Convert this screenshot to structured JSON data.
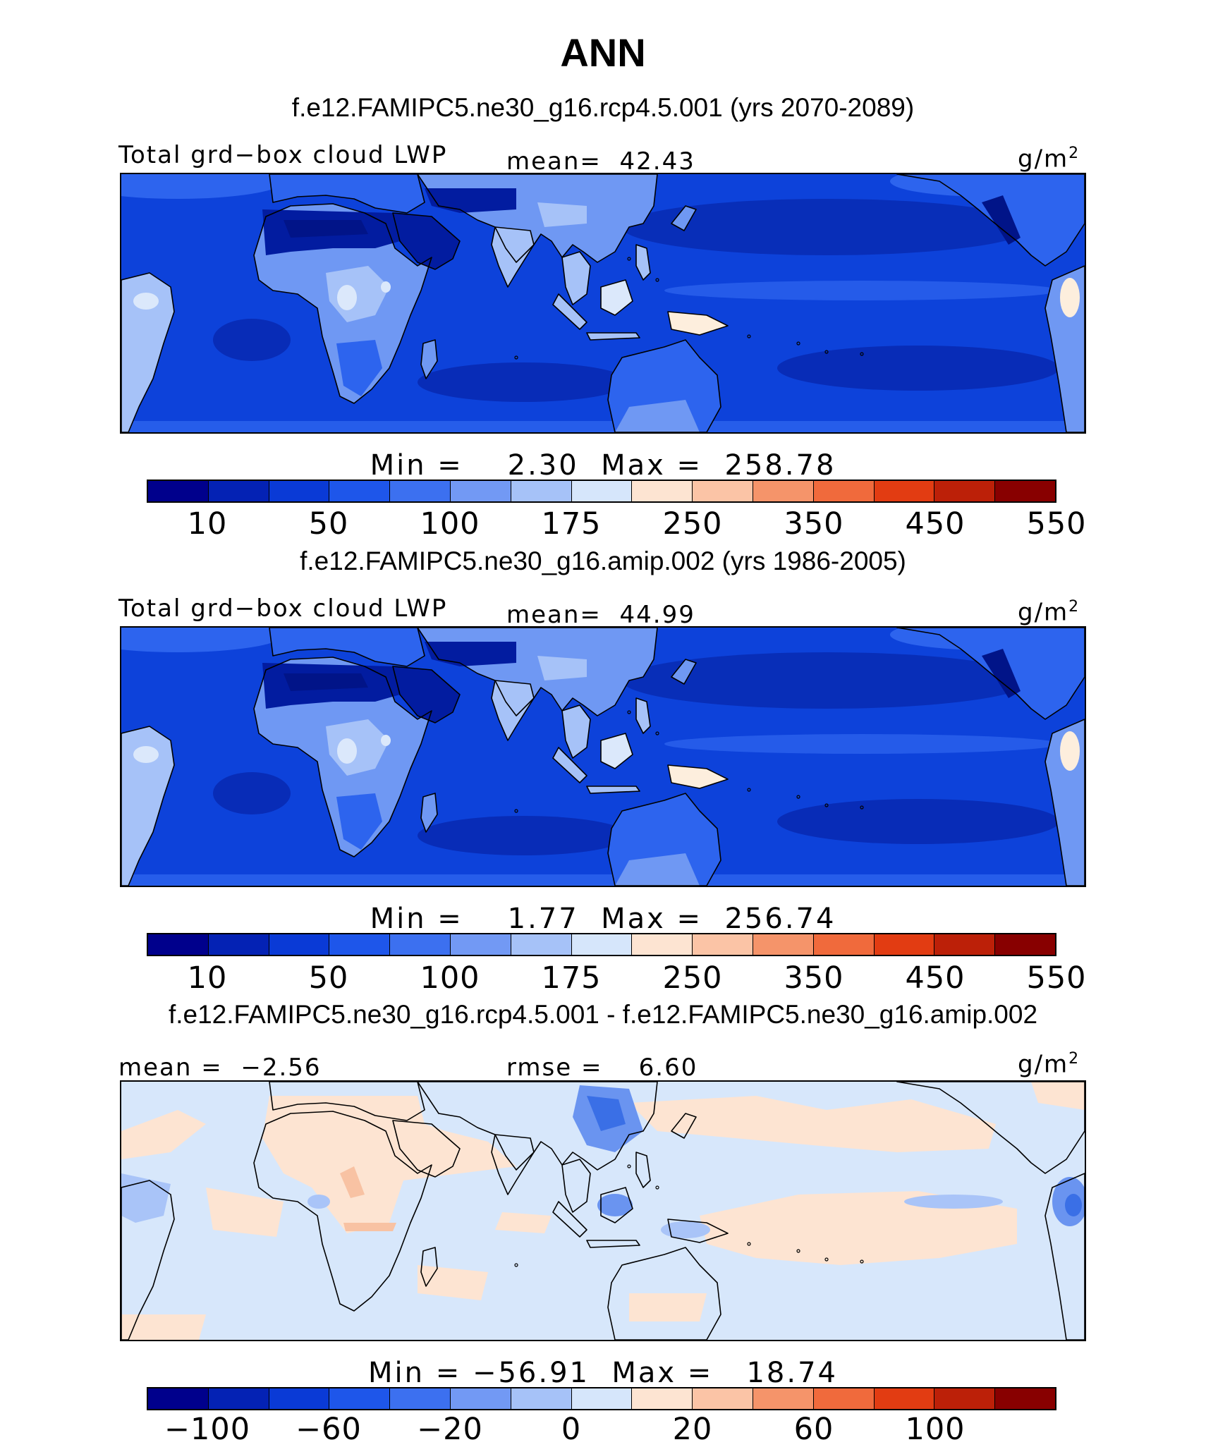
{
  "title": "ANN",
  "colors": {
    "cbar": [
      "#00008c",
      "#0422b4",
      "#0a3ad6",
      "#1e56ea",
      "#3c70f0",
      "#7299f4",
      "#a6c2f8",
      "#d6e6fb",
      "#fde4d2",
      "#fbc4a6",
      "#f5946a",
      "#f06a3c",
      "#e23c12",
      "#bc2008",
      "#880000"
    ],
    "ocean_mean": "#0d42da",
    "ocean_deep": "#082ab2",
    "desert": "#021ca0",
    "desert_deep": "#011488",
    "mid": "#2d64ee",
    "light": "#6f98f3",
    "lighter": "#a6c2f8",
    "lightest": "#dbe8fb",
    "cream": "#fdeedd",
    "diff_bg": "#d7e7fb",
    "diff_pos": "#fde4d2",
    "diff_neg1": "#a9c4f8",
    "diff_neg2": "#6a94f0",
    "diff_neg3": "#3a6fe6",
    "coast": "#000000"
  },
  "panels": [
    {
      "case": "f.e12.FAMIPC5.ne30_g16.rcp4.5.001 (yrs 2070-2089)",
      "variable": "Total grd−box cloud LWP",
      "center_label": "mean=  42.43",
      "units": "g/m",
      "units_sup": "2",
      "stats": "Min =    2.30  Max =  258.78",
      "min": 2.3,
      "max": 258.78,
      "mean": 42.43,
      "ticks": [
        "10",
        "50",
        "100",
        "175",
        "250",
        "350",
        "450",
        "550"
      ]
    },
    {
      "case": "f.e12.FAMIPC5.ne30_g16.amip.002 (yrs 1986-2005)",
      "variable": "Total grd−box cloud LWP",
      "center_label": "mean=  44.99",
      "units": "g/m",
      "units_sup": "2",
      "stats": "Min =    1.77  Max =  256.74",
      "min": 1.77,
      "max": 256.74,
      "mean": 44.99,
      "ticks": [
        "10",
        "50",
        "100",
        "175",
        "250",
        "350",
        "450",
        "550"
      ]
    },
    {
      "case": "f.e12.FAMIPC5.ne30_g16.rcp4.5.001 - f.e12.FAMIPC5.ne30_g16.amip.002",
      "variable": "mean =  −2.56",
      "center_label": "rmse =    6.60",
      "units": "g/m",
      "units_sup": "2",
      "stats": "Min = −56.91  Max =   18.74",
      "min": -56.91,
      "max": 18.74,
      "mean": -2.56,
      "rmse": 6.6,
      "ticks": [
        "−100",
        "−60",
        "−20",
        "0",
        "20",
        "60",
        "100"
      ]
    }
  ]
}
